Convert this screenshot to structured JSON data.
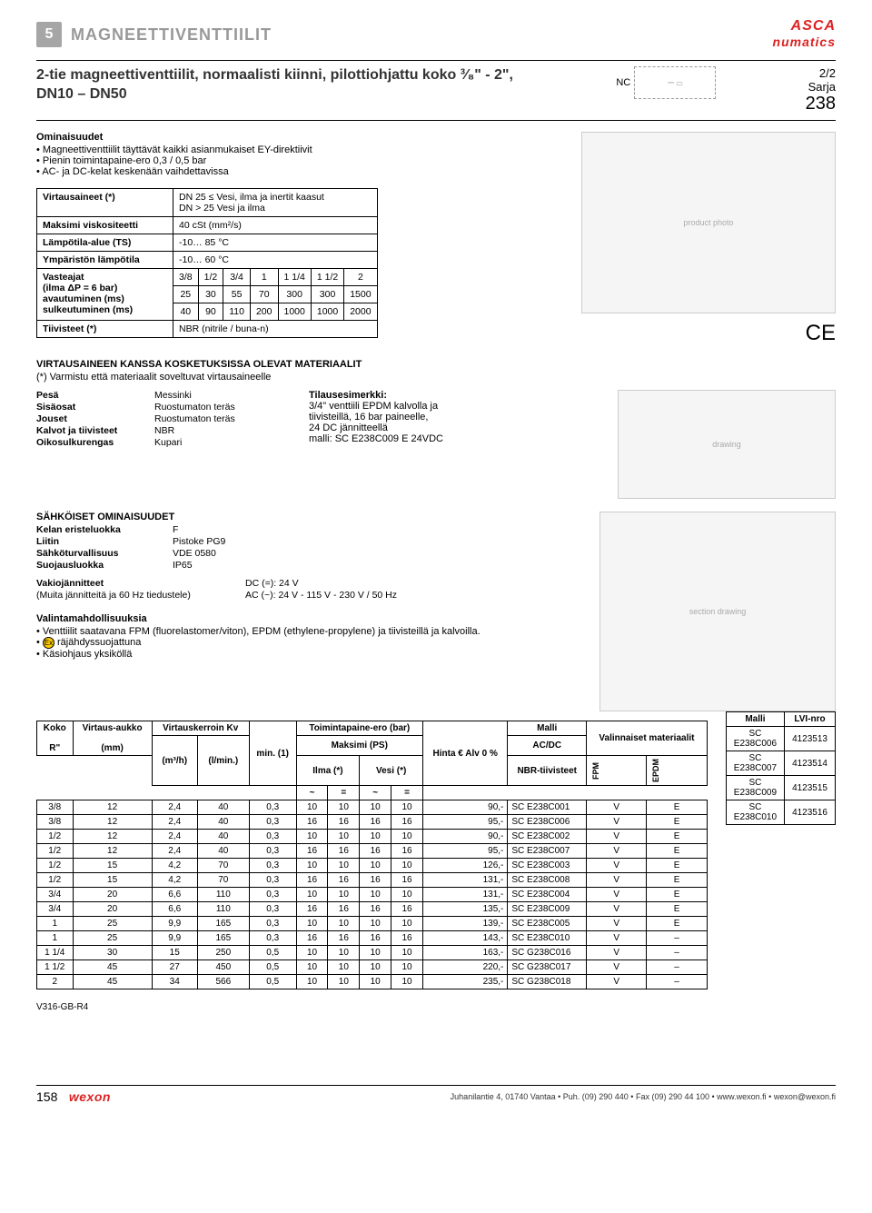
{
  "header": {
    "page_num": "5",
    "category": "MAGNEETTIVENTTIILIT",
    "brand1": "ASCA",
    "brand2": "numatics"
  },
  "title": {
    "line": "2-tie magneettiventtiilit, normaalisti kiinni, pilottiohjattu koko ³⁄₈\" - 2\", DN10 – DN50",
    "nc": "NC",
    "series_top": "2/2",
    "series_mid": "Sarja",
    "series_num": "238"
  },
  "features": {
    "heading": "Ominaisuudet",
    "items": [
      "Magneettiventtiilit täyttävät kaikki asianmukaiset EY-direktiivit",
      "Pienin toimintapaine-ero 0,3 / 0,5 bar",
      "AC- ja DC-kelat keskenään vaihdettavissa"
    ]
  },
  "spec": {
    "rows": [
      {
        "label": "Virtausaineet (*)",
        "value": "DN 25 ≤ Vesi, ilma ja inertit kaasut\nDN > 25 Vesi ja ilma"
      },
      {
        "label": "Maksimi viskositeetti",
        "value": "40 cSt (mm²/s)"
      },
      {
        "label": "Lämpötila-alue (TS)",
        "value": "-10… 85 °C"
      },
      {
        "label": "Ympäristön lämpötila",
        "value": "-10… 60 °C"
      }
    ],
    "resp_label": "Vasteajat\n(ilma ΔP = 6 bar)\navautuminen (ms)\nsulkeutuminen (ms)",
    "resp_headers": [
      "3/8",
      "1/2",
      "3/4",
      "1",
      "1 1/4",
      "1 1/2",
      "2"
    ],
    "resp_open": [
      "25",
      "30",
      "55",
      "70",
      "300",
      "300",
      "1500"
    ],
    "resp_close": [
      "40",
      "90",
      "110",
      "200",
      "1000",
      "1000",
      "2000"
    ],
    "seal_label": "Tiivisteet (*)",
    "seal_value": "NBR (nitrile / buna-n)"
  },
  "materials": {
    "heading": "VIRTAUSAINEEN KANSSA KOSKETUKSISSA OLEVAT MATERIAALIT",
    "note": "(*) Varmistu että materiaalit soveltuvat virtausaineelle",
    "left": [
      [
        "Pesä",
        "Messinki"
      ],
      [
        "Sisäosat",
        "Ruostumaton teräs"
      ],
      [
        "Jouset",
        "Ruostumaton teräs"
      ],
      [
        "Kalvot ja tiivisteet",
        "NBR"
      ],
      [
        "Oikosulkurengas",
        "Kupari"
      ]
    ],
    "right_heading": "Tilausesimerkki:",
    "right_lines": [
      "3/4\" venttiili EPDM kalvolla ja",
      "tiivisteillä, 16 bar paineelle,",
      "24 DC jännitteellä",
      "malli: SC E238C009 E 24VDC"
    ]
  },
  "electrical": {
    "heading": "SÄHKÖISET OMINAISUUDET",
    "rows": [
      [
        "Kelan eristeluokka",
        "F"
      ],
      [
        "Liitin",
        "Pistoke PG9"
      ],
      [
        "Sähköturvallisuus",
        "VDE 0580"
      ],
      [
        "Suojausluokka",
        "IP65"
      ]
    ],
    "volt_rows": [
      [
        "Vakiojännitteet",
        "DC (=): 24 V"
      ],
      [
        "(Muita jännitteitä ja 60 Hz tiedustele)",
        "AC (~): 24 V - 115 V - 230 V / 50 Hz"
      ]
    ]
  },
  "options": {
    "heading": "Valintamahdollisuuksia",
    "items": [
      "Venttiilit saatavana FPM (fluorelastomer/viton), EPDM (ethylene-propylene) ja tiivisteillä ja kalvoilla.",
      "räjähdyssuojattuna",
      "Käsiohjaus yksiköllä"
    ]
  },
  "main_table": {
    "h": {
      "koko": "Koko",
      "r": "R\"",
      "virtaus": "Virtaus-aukko",
      "mm": "(mm)",
      "kerroin": "Virtauskerroin Kv",
      "m3h": "(m³/h)",
      "lmin": "(l/min.)",
      "toim": "Toimintapaine-ero (bar)",
      "min": "min. (1)",
      "maks": "Maksimi (PS)",
      "ilma": "Ilma (*)",
      "vesi": "Vesi (*)",
      "tilde": "~",
      "eq": "=",
      "hinta": "Hinta € Alv 0 %",
      "malli": "Malli",
      "acdc": "AC/DC",
      "nbr": "NBR-tiivisteet",
      "valin": "Valinnaiset materiaalit",
      "fpm": "FPM",
      "epdm": "EPDM"
    },
    "rows": [
      [
        "3/8",
        "12",
        "2,4",
        "40",
        "0,3",
        "10",
        "10",
        "10",
        "10",
        "90,-",
        "SC E238C001",
        "V",
        "E"
      ],
      [
        "3/8",
        "12",
        "2,4",
        "40",
        "0,3",
        "16",
        "16",
        "16",
        "16",
        "95,-",
        "SC E238C006",
        "V",
        "E"
      ],
      [
        "1/2",
        "12",
        "2,4",
        "40",
        "0,3",
        "10",
        "10",
        "10",
        "10",
        "90,-",
        "SC E238C002",
        "V",
        "E"
      ],
      [
        "1/2",
        "12",
        "2,4",
        "40",
        "0,3",
        "16",
        "16",
        "16",
        "16",
        "95,-",
        "SC E238C007",
        "V",
        "E"
      ],
      [
        "1/2",
        "15",
        "4,2",
        "70",
        "0,3",
        "10",
        "10",
        "10",
        "10",
        "126,-",
        "SC E238C003",
        "V",
        "E"
      ],
      [
        "1/2",
        "15",
        "4,2",
        "70",
        "0,3",
        "16",
        "16",
        "16",
        "16",
        "131,-",
        "SC E238C008",
        "V",
        "E"
      ],
      [
        "3/4",
        "20",
        "6,6",
        "110",
        "0,3",
        "10",
        "10",
        "10",
        "10",
        "131,-",
        "SC E238C004",
        "V",
        "E"
      ],
      [
        "3/4",
        "20",
        "6,6",
        "110",
        "0,3",
        "16",
        "16",
        "16",
        "16",
        "135,-",
        "SC E238C009",
        "V",
        "E"
      ],
      [
        "1",
        "25",
        "9,9",
        "165",
        "0,3",
        "10",
        "10",
        "10",
        "10",
        "139,-",
        "SC E238C005",
        "V",
        "E"
      ],
      [
        "1",
        "25",
        "9,9",
        "165",
        "0,3",
        "16",
        "16",
        "16",
        "16",
        "143,-",
        "SC E238C010",
        "V",
        "–"
      ],
      [
        "1 1/4",
        "30",
        "15",
        "250",
        "0,5",
        "10",
        "10",
        "10",
        "10",
        "163,-",
        "SC G238C016",
        "V",
        "–"
      ],
      [
        "1 1/2",
        "45",
        "27",
        "450",
        "0,5",
        "10",
        "10",
        "10",
        "10",
        "220,-",
        "SC G238C017",
        "V",
        "–"
      ],
      [
        "2",
        "45",
        "34",
        "566",
        "0,5",
        "10",
        "10",
        "10",
        "10",
        "235,-",
        "SC G238C018",
        "V",
        "–"
      ]
    ]
  },
  "lvi_table": {
    "h1": "Malli",
    "h2": "LVI-nro",
    "rows": [
      [
        "SC E238C006",
        "4123513"
      ],
      [
        "SC E238C007",
        "4123514"
      ],
      [
        "SC E238C009",
        "4123515"
      ],
      [
        "SC E238C010",
        "4123516"
      ]
    ]
  },
  "rev": "V316-GB-R4",
  "footer": {
    "page": "158",
    "wexon": "wexon",
    "addr": "Juhanilantie 4, 01740 Vantaa • Puh. (09) 290 440 • Fax (09) 290 44 100 • www.wexon.fi • wexon@wexon.fi"
  }
}
